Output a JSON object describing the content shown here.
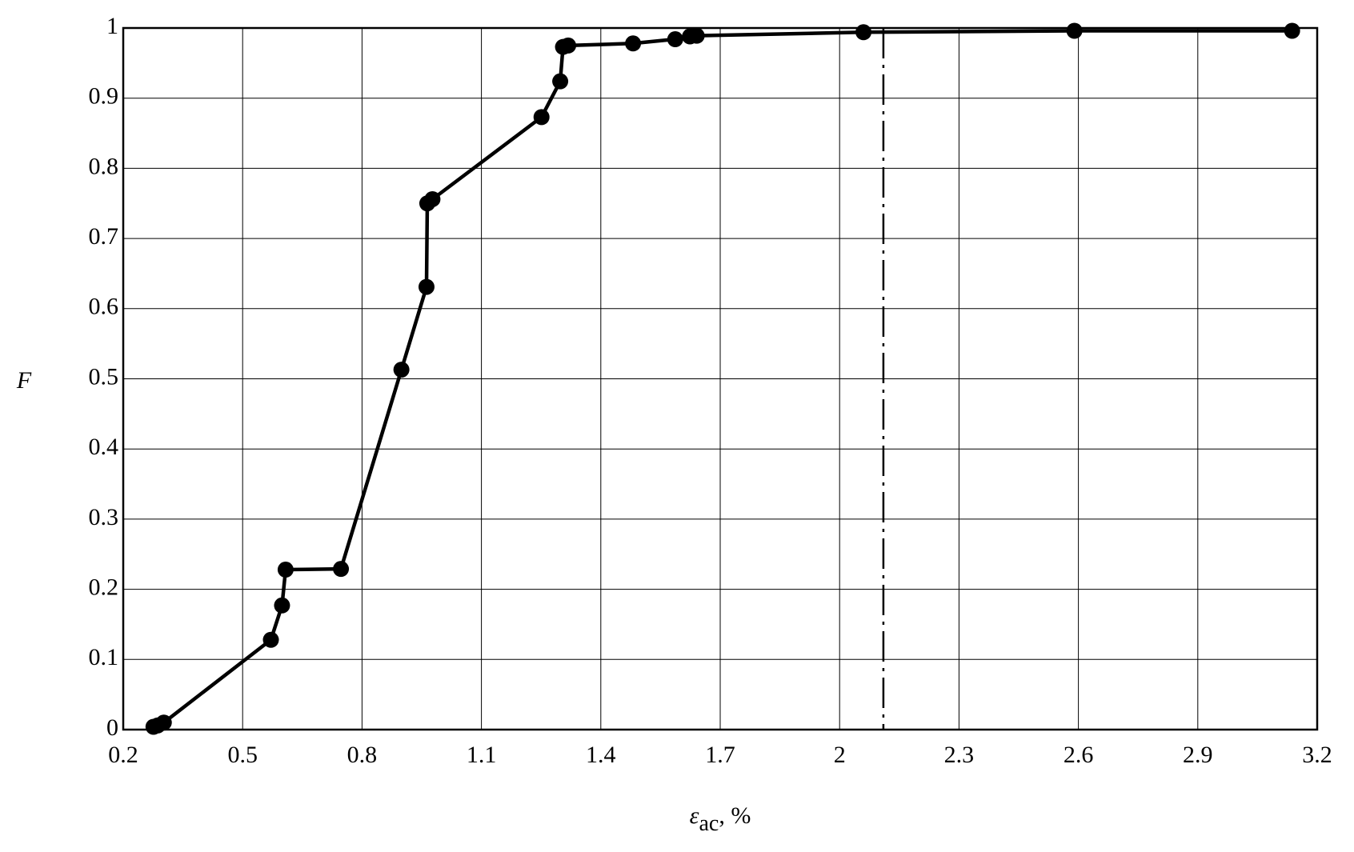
{
  "chart_data": {
    "type": "line",
    "xlabel": "ε",
    "xlabel_sub": "ac",
    "xlabel_unit": ", %",
    "ylabel": "F",
    "x": [
      0.276,
      0.287,
      0.302,
      0.571,
      0.599,
      0.608,
      0.747,
      0.899,
      0.962,
      0.964,
      0.977,
      1.251,
      1.298,
      1.305,
      1.318,
      1.481,
      1.587,
      1.624,
      1.641,
      2.06,
      2.59,
      3.137
    ],
    "series": [
      {
        "color": "#000000",
        "values": [
          0.004,
          0.006,
          0.01,
          0.128,
          0.177,
          0.228,
          0.229,
          0.513,
          0.631,
          0.75,
          0.756,
          0.873,
          0.924,
          0.973,
          0.975,
          0.978,
          0.984,
          0.988,
          0.989,
          0.994,
          0.996,
          0.996
        ]
      }
    ],
    "xlim": [
      0.2,
      3.2
    ],
    "xticks": [
      0.2,
      0.5,
      0.8,
      1.1,
      1.4,
      1.7,
      2,
      2.3,
      2.6,
      2.9,
      3.2
    ],
    "ylim": [
      0,
      1
    ],
    "yticks": [
      0,
      0.1,
      0.2,
      0.3,
      0.4,
      0.5,
      0.6,
      0.7,
      0.8,
      0.9,
      1
    ],
    "grid": true,
    "reference_lines": [
      {
        "axis": "x",
        "value": 2.11
      },
      {
        "axis": "y",
        "value": 1
      }
    ]
  }
}
